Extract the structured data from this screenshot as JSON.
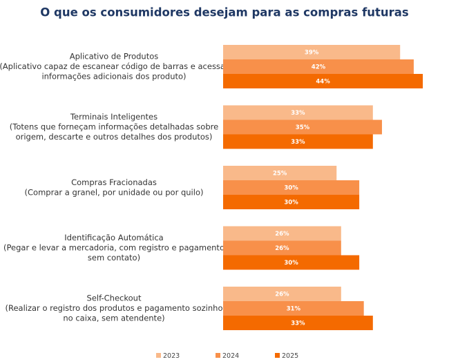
{
  "chart_data": {
    "type": "hbar",
    "title": "O que os consumidores desejam para as compras futuras",
    "categories": [
      [
        "Aplicativo de Produtos",
        "(Aplicativo capaz de escanear código de barras e acessar",
        "informações adicionais dos produto)"
      ],
      [
        "Terminais Inteligentes",
        "(Totens que forneçam informações detalhadas sobre",
        "origem, descarte e outros detalhes dos produtos)"
      ],
      [
        "Compras Fracionadas",
        "(Comprar a granel, por unidade ou por quilo)"
      ],
      [
        "Identificação Automática",
        "(Pegar e levar a mercadoria, com registro e pagamento",
        "sem contato)"
      ],
      [
        "Self-Checkout",
        "(Realizar o registro dos produtos e pagamento sozinho",
        "no caixa, sem atendente)"
      ]
    ],
    "series": [
      {
        "name": "2023",
        "color": "#f9b98a",
        "values": [
          39,
          33,
          25,
          26,
          26
        ],
        "value_labels": [
          "39%",
          "33%",
          "25%",
          "26%",
          "26%"
        ]
      },
      {
        "name": "2024",
        "color": "#f8904a",
        "values": [
          42,
          35,
          30,
          26,
          31
        ],
        "value_labels": [
          "42%",
          "35%",
          "30%",
          "26%",
          "31%"
        ]
      },
      {
        "name": "2025",
        "color": "#f46a00",
        "values": [
          44,
          33,
          30,
          30,
          33
        ],
        "value_labels": [
          "44%",
          "33%",
          "30%",
          "30%",
          "33%"
        ]
      }
    ],
    "legend": "bottom"
  }
}
